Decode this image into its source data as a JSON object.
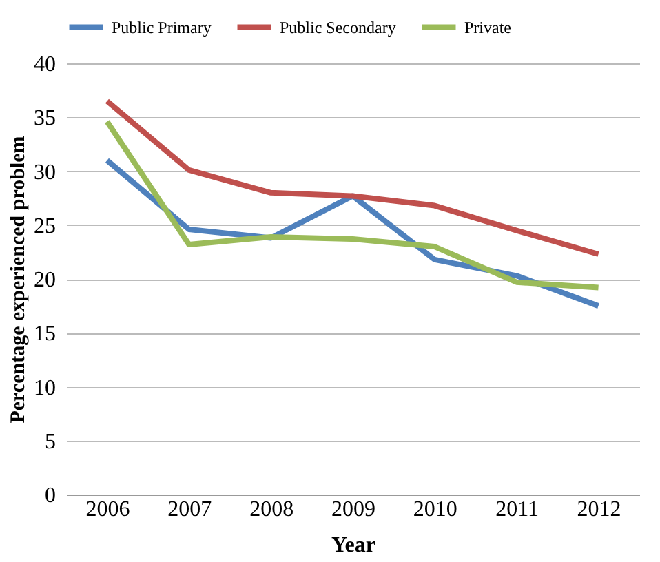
{
  "chart_data": {
    "type": "line",
    "xlabel": "Year",
    "ylabel": "Percentage experienced problem",
    "categories": [
      "2006",
      "2007",
      "2008",
      "2009",
      "2010",
      "2011",
      "2012"
    ],
    "series": [
      {
        "name": "Public Primary",
        "color": "#4f81bd",
        "values": [
          31.0,
          24.6,
          23.8,
          27.7,
          21.8,
          20.3,
          17.5
        ]
      },
      {
        "name": "Public Secondary",
        "color": "#c0504d",
        "values": [
          36.5,
          30.1,
          28.0,
          27.7,
          26.8,
          24.5,
          22.3
        ]
      },
      {
        "name": "Private",
        "color": "#9bbb59",
        "values": [
          34.6,
          23.2,
          23.9,
          23.7,
          23.0,
          19.7,
          19.2
        ]
      }
    ],
    "ylim": [
      0,
      40
    ],
    "yticks": [
      0,
      5,
      10,
      15,
      20,
      25,
      30,
      35,
      40
    ],
    "grid": "y",
    "legend": "top",
    "marker": "none",
    "line_style": "solid"
  }
}
